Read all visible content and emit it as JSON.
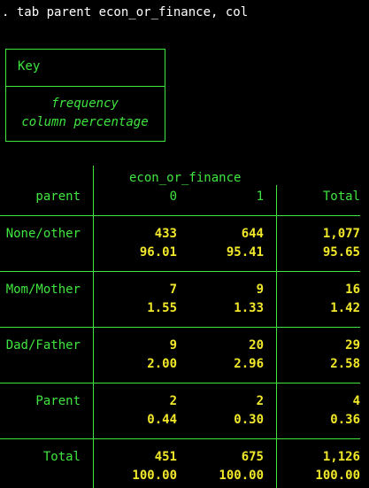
{
  "command": ". tab parent econ_or_finance, col",
  "key_box": {
    "title": "Key",
    "lines": [
      "frequency",
      "column percentage"
    ]
  },
  "table": {
    "col_var": "econ_or_finance",
    "row_var": "parent",
    "columns": [
      "0",
      "1",
      "Total"
    ],
    "rows": [
      {
        "label": "None/other",
        "freq": [
          "433",
          "644",
          "1,077"
        ],
        "pct": [
          "96.01",
          "95.41",
          "95.65"
        ]
      },
      {
        "label": "Mom/Mother",
        "freq": [
          "7",
          "9",
          "16"
        ],
        "pct": [
          "1.55",
          "1.33",
          "1.42"
        ]
      },
      {
        "label": "Dad/Father",
        "freq": [
          "9",
          "20",
          "29"
        ],
        "pct": [
          "2.00",
          "2.96",
          "2.58"
        ]
      },
      {
        "label": "Parent",
        "freq": [
          "2",
          "2",
          "4"
        ],
        "pct": [
          "0.44",
          "0.30",
          "0.36"
        ]
      },
      {
        "label": "Total",
        "freq": [
          "451",
          "675",
          "1,126"
        ],
        "pct": [
          "100.00",
          "100.00",
          "100.00"
        ]
      }
    ]
  },
  "colors": {
    "background": "#000000",
    "command_text": "#ffffff",
    "labels": "#3fe63f",
    "values": "#f2e82a"
  }
}
